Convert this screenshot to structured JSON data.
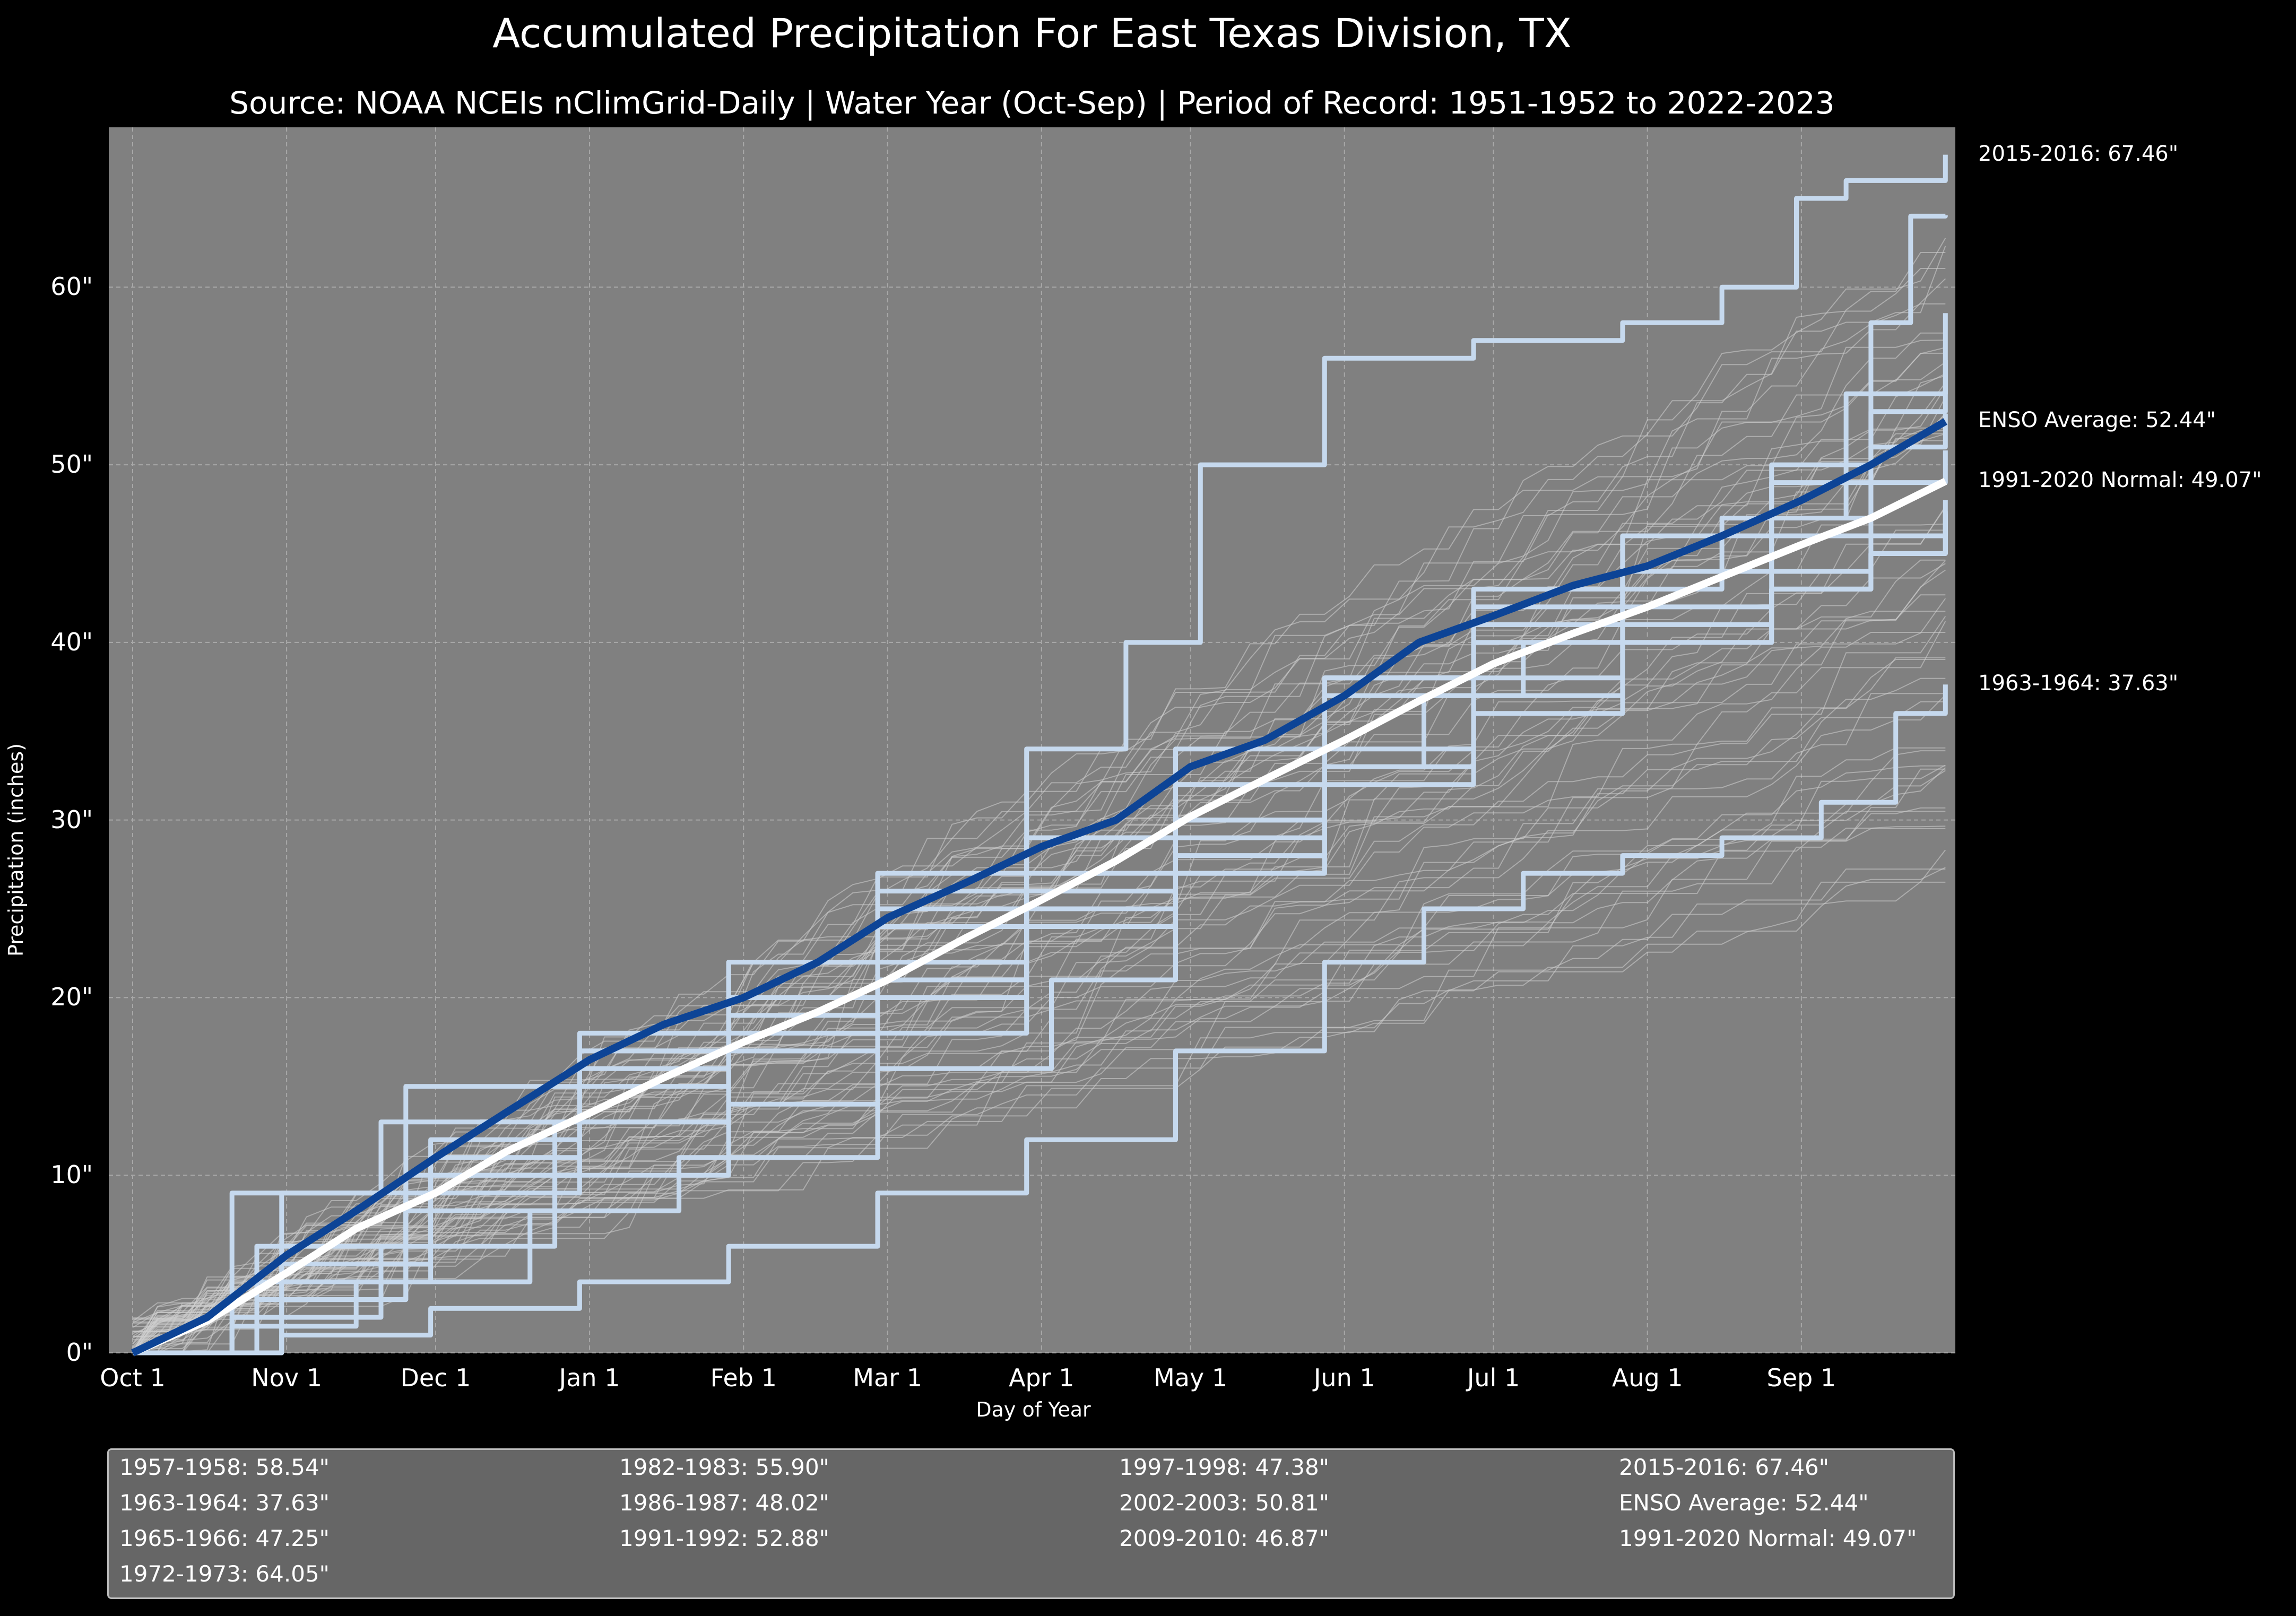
{
  "chart_data": {
    "type": "line",
    "title": "Accumulated Precipitation For East Texas Division, TX",
    "subtitle": "Source: NOAA NCEIs nClimGrid-Daily | Water Year (Oct-Sep) | Period of Record: 1951-1952 to 2022-2023",
    "xlabel": "Day of Year",
    "ylabel": "Precipitation (inches)",
    "xlim": [
      0,
      365
    ],
    "ylim": [
      0,
      69
    ],
    "grid": true,
    "legend_placement": "bottom",
    "x_ticks": [
      {
        "day": 0,
        "label": "Oct 1"
      },
      {
        "day": 31,
        "label": "Nov 1"
      },
      {
        "day": 61,
        "label": "Dec 1"
      },
      {
        "day": 92,
        "label": "Jan 1"
      },
      {
        "day": 123,
        "label": "Feb 1"
      },
      {
        "day": 152,
        "label": "Mar 1"
      },
      {
        "day": 183,
        "label": "Apr 1"
      },
      {
        "day": 213,
        "label": "May 1"
      },
      {
        "day": 244,
        "label": "Jun 1"
      },
      {
        "day": 274,
        "label": "Jul 1"
      },
      {
        "day": 305,
        "label": "Aug 1"
      },
      {
        "day": 336,
        "label": "Sep 1"
      }
    ],
    "y_ticks": [
      {
        "value": 0,
        "label": "0\""
      },
      {
        "value": 10,
        "label": "10\""
      },
      {
        "value": 20,
        "label": "20\""
      },
      {
        "value": 30,
        "label": "30\""
      },
      {
        "value": 40,
        "label": "40\""
      },
      {
        "value": 50,
        "label": "50\""
      },
      {
        "value": 60,
        "label": "60\""
      }
    ],
    "background_color": "#808080",
    "colors": {
      "highlight": "#c6d9ee",
      "enso": "#0d4496",
      "normal": "#ffffff",
      "other_years": "#d0d0d0"
    },
    "series": [
      {
        "name": "1957-1958",
        "legend": "1957-1958:  58.54\"",
        "role": "highlight",
        "x": [
          0,
          20,
          45,
          80,
          110,
          150,
          185,
          210,
          240,
          260,
          280,
          300,
          320,
          345,
          365
        ],
        "y": [
          0,
          1.5,
          4,
          8,
          11,
          16,
          21,
          27,
          33,
          37,
          40,
          43,
          47,
          54,
          58.54
        ]
      },
      {
        "name": "1963-1964",
        "legend": "1963-1964:  37.63\"",
        "role": "highlight",
        "x": [
          0,
          30,
          60,
          90,
          120,
          150,
          180,
          210,
          240,
          260,
          280,
          300,
          320,
          340,
          355,
          365
        ],
        "y": [
          0,
          1,
          2.5,
          4,
          6,
          9,
          12,
          17,
          22,
          25,
          27,
          28,
          29,
          31,
          36,
          37.63
        ]
      },
      {
        "name": "1965-1966",
        "legend": "1965-1966:  47.25\"",
        "role": "highlight",
        "x": [
          0,
          25,
          55,
          90,
          120,
          150,
          180,
          210,
          240,
          270,
          300,
          330,
          350,
          365
        ],
        "y": [
          0,
          3,
          9,
          13,
          17,
          20,
          24,
          27,
          33,
          37,
          40,
          43,
          45,
          47.25
        ]
      },
      {
        "name": "1972-1973",
        "legend": "1972-1973:  64.05\"",
        "role": "highlight",
        "x": [
          0,
          20,
          50,
          85,
          120,
          150,
          180,
          210,
          240,
          270,
          300,
          330,
          350,
          358,
          365
        ],
        "y": [
          0,
          2,
          6,
          10,
          14,
          18,
          25,
          30,
          38,
          41,
          44,
          47,
          58,
          64,
          64.05
        ]
      },
      {
        "name": "1982-1983",
        "legend": "1982-1983:  55.90\"",
        "role": "highlight",
        "x": [
          0,
          25,
          55,
          90,
          120,
          150,
          180,
          210,
          240,
          270,
          300,
          330,
          350,
          365
        ],
        "y": [
          0,
          4,
          10,
          15,
          18,
          21,
          26,
          30,
          38,
          43,
          46,
          49,
          53,
          55.9
        ]
      },
      {
        "name": "1986-1987",
        "legend": "1986-1987:  48.02\"",
        "role": "highlight",
        "x": [
          0,
          30,
          60,
          90,
          120,
          150,
          180,
          210,
          240,
          270,
          300,
          330,
          350,
          365
        ],
        "y": [
          0,
          5,
          11,
          16,
          19,
          22,
          25,
          28,
          33,
          38,
          41,
          44,
          46,
          48.02
        ]
      },
      {
        "name": "1991-1992",
        "legend": "1991-1992:  52.88\"",
        "role": "highlight",
        "x": [
          0,
          25,
          55,
          85,
          120,
          150,
          180,
          210,
          240,
          270,
          300,
          330,
          350,
          365
        ],
        "y": [
          0,
          3,
          8,
          13,
          17,
          20,
          25,
          30,
          37,
          42,
          46,
          50,
          51,
          52.88
        ]
      },
      {
        "name": "1997-1998",
        "legend": "1997-1998:  47.38\"",
        "role": "highlight",
        "x": [
          0,
          30,
          60,
          90,
          120,
          150,
          180,
          210,
          240,
          270,
          300,
          330,
          350,
          365
        ],
        "y": [
          0,
          4,
          10,
          15,
          20,
          25,
          29,
          34,
          38,
          41,
          42,
          43,
          45,
          47.38
        ]
      },
      {
        "name": "2002-2003",
        "legend": "2002-2003:  50.81\"",
        "role": "highlight",
        "x": [
          0,
          30,
          60,
          90,
          120,
          150,
          180,
          210,
          240,
          270,
          300,
          330,
          350,
          365
        ],
        "y": [
          0,
          9,
          12,
          17,
          22,
          26,
          29,
          32,
          34,
          40,
          44,
          46,
          49,
          50.81
        ]
      },
      {
        "name": "2009-2010",
        "legend": "2009-2010:  46.87\"",
        "role": "highlight",
        "x": [
          0,
          20,
          50,
          90,
          120,
          150,
          180,
          210,
          240,
          270,
          300,
          330,
          350,
          365
        ],
        "y": [
          0,
          9,
          13,
          17,
          20,
          24,
          27,
          29,
          32,
          36,
          40,
          43,
          45,
          46.87
        ]
      },
      {
        "name": "2015-2016",
        "legend": "2015-2016:  67.46\"",
        "role": "highlight",
        "x": [
          0,
          25,
          55,
          90,
          120,
          150,
          180,
          200,
          215,
          240,
          270,
          300,
          320,
          335,
          345,
          365
        ],
        "y": [
          0,
          6,
          15,
          18,
          22,
          27,
          34,
          40,
          50,
          56,
          57,
          58,
          60,
          65,
          66,
          67.46
        ]
      },
      {
        "name": "ENSO Average",
        "legend": "ENSO Average:  52.44\"",
        "role": "enso",
        "x": [
          0,
          15,
          31,
          45,
          61,
          75,
          92,
          107,
          123,
          138,
          152,
          168,
          183,
          198,
          213,
          228,
          244,
          259,
          274,
          290,
          305,
          320,
          336,
          350,
          365
        ],
        "y": [
          0,
          2,
          5.5,
          8,
          11,
          13.5,
          16.5,
          18.5,
          20,
          22,
          24.5,
          26.5,
          28.5,
          30,
          33,
          34.5,
          37,
          40,
          41.5,
          43.2,
          44.3,
          46,
          48,
          50,
          52.44
        ]
      },
      {
        "name": "1991-2020 Normal",
        "legend": "1991-2020 Normal:  49.07\"",
        "role": "normal",
        "x": [
          0,
          15,
          31,
          45,
          61,
          75,
          92,
          107,
          123,
          138,
          152,
          168,
          183,
          198,
          213,
          228,
          244,
          259,
          274,
          290,
          305,
          320,
          336,
          350,
          365
        ],
        "y": [
          0,
          1.8,
          4.5,
          7,
          9,
          11.3,
          13.5,
          15.5,
          17.5,
          19.2,
          21,
          23.4,
          25.5,
          27.7,
          30.2,
          32.3,
          34.5,
          36.7,
          38.8,
          40.5,
          42,
          43.7,
          45.5,
          47,
          49.07
        ]
      }
    ],
    "right_labels": [
      {
        "text": "2015-2016:  67.46\"",
        "value": 67.46
      },
      {
        "text": "ENSO Average:  52.44\"",
        "value": 52.44
      },
      {
        "text": "1991-2020 Normal:  49.07\"",
        "value": 49.07
      },
      {
        "text": "1963-1964:  37.63\"",
        "value": 37.63
      }
    ],
    "legend_columns": [
      [
        "1957-1958:  58.54\"",
        "1963-1964:  37.63\"",
        "1965-1966:  47.25\"",
        "1972-1973:  64.05\""
      ],
      [
        "1982-1983:  55.90\"",
        "1986-1987:  48.02\"",
        "1991-1992:  52.88\""
      ],
      [
        "1997-1998:  47.38\"",
        "2002-2003:  50.81\"",
        "2009-2010:  46.87\""
      ],
      [
        "2015-2016:  67.46\"",
        "ENSO Average:  52.44\"",
        "1991-2020 Normal:  49.07\""
      ]
    ]
  }
}
